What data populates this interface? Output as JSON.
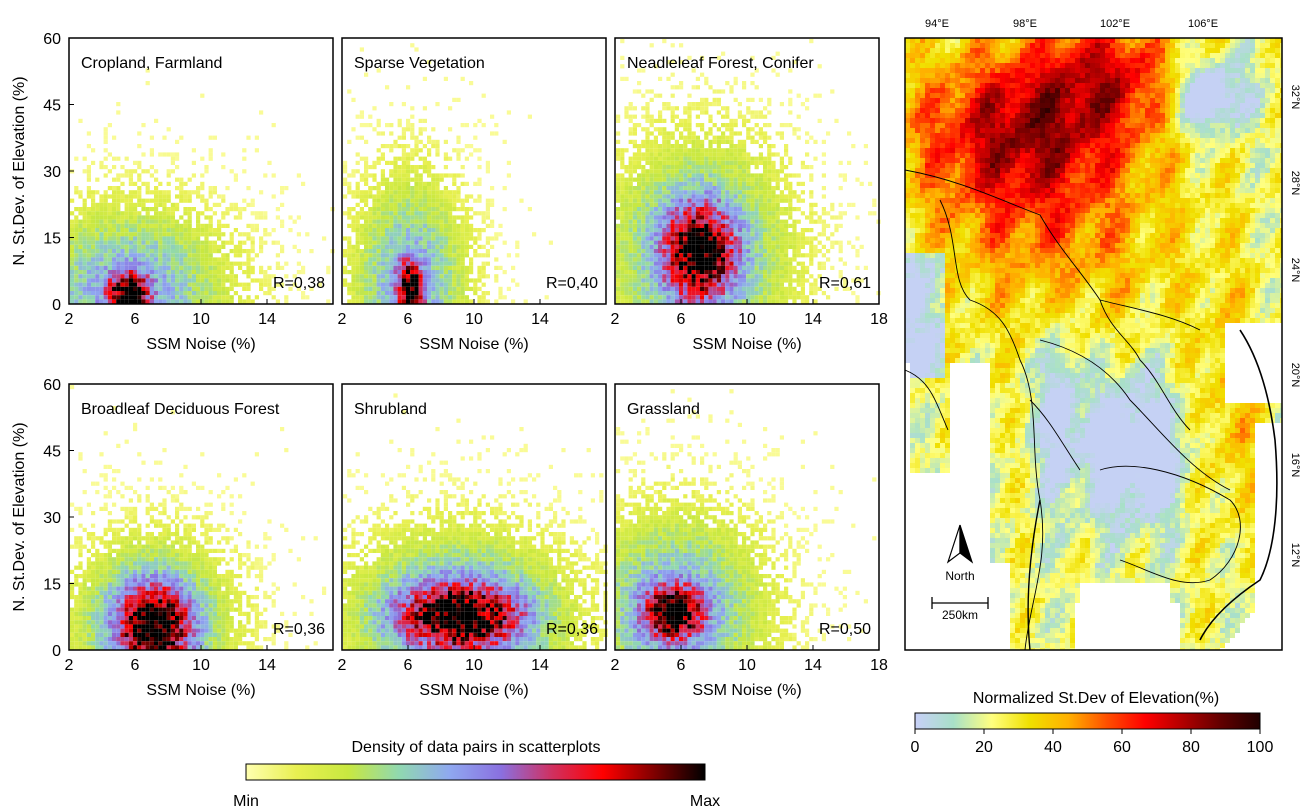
{
  "chart_data": [
    {
      "type": "scatter",
      "panel": "top-left",
      "title": "Cropland, Farmland",
      "annotation": "R=0,38",
      "xlabel": "SSM Noise (%)",
      "ylabel": "N. St.Dev. of Elevation (%)",
      "xlim": [
        2,
        18
      ],
      "ylim": [
        0,
        60
      ],
      "xticks": [
        "2",
        "6",
        "10",
        "14"
      ],
      "yticks": [
        "0",
        "15",
        "30",
        "45",
        "60"
      ],
      "density": {
        "cx": 5.5,
        "cy": 3,
        "sx": 0.8,
        "sy": 3,
        "spread_x": 4.5,
        "spread_y": 14
      }
    },
    {
      "type": "scatter",
      "panel": "top-center",
      "title": "Sparse Vegetation",
      "annotation": "R=0,40",
      "xlabel": "SSM Noise (%)",
      "ylabel": "",
      "xlim": [
        2,
        18
      ],
      "ylim": [
        0,
        60
      ],
      "xticks": [
        "2",
        "6",
        "10",
        "14"
      ],
      "yticks": [],
      "density": {
        "cx": 6,
        "cy": 4,
        "sx": 0.5,
        "sy": 4,
        "spread_x": 2.5,
        "spread_y": 18
      }
    },
    {
      "type": "scatter",
      "panel": "top-right",
      "title": "Neadleleaf Forest, Conifer",
      "annotation": "R=0,61",
      "xlabel": "SSM Noise (%)",
      "ylabel": "",
      "xlim": [
        2,
        18
      ],
      "ylim": [
        0,
        60
      ],
      "xticks": [
        "2",
        "6",
        "10",
        "14",
        "18"
      ],
      "yticks": [],
      "density": {
        "cx": 7,
        "cy": 12,
        "sx": 1.4,
        "sy": 7,
        "spread_x": 4,
        "spread_y": 18
      }
    },
    {
      "type": "scatter",
      "panel": "bottom-left",
      "title": "Broadleaf Deciduous Forest",
      "annotation": "R=0,36",
      "xlabel": "SSM Noise (%)",
      "ylabel": "N. St.Dev. of Elevation (%)",
      "xlim": [
        2,
        18
      ],
      "ylim": [
        0,
        60
      ],
      "xticks": [
        "2",
        "6",
        "10",
        "14"
      ],
      "yticks": [
        "0",
        "15",
        "30",
        "45",
        "60"
      ],
      "density": {
        "cx": 7,
        "cy": 6,
        "sx": 1.5,
        "sy": 6,
        "spread_x": 3.5,
        "spread_y": 14
      }
    },
    {
      "type": "scatter",
      "panel": "bottom-center",
      "title": "Shrubland",
      "annotation": "R=0,36",
      "xlabel": "SSM Noise (%)",
      "ylabel": "",
      "xlim": [
        2,
        18
      ],
      "ylim": [
        0,
        60
      ],
      "xticks": [
        "2",
        "6",
        "10",
        "14"
      ],
      "yticks": [],
      "density": {
        "cx": 9,
        "cy": 8,
        "sx": 2.5,
        "sy": 5,
        "spread_x": 5,
        "spread_y": 14
      }
    },
    {
      "type": "scatter",
      "panel": "bottom-right",
      "title": "Grassland",
      "annotation": "R=0,50",
      "xlabel": "SSM Noise (%)",
      "ylabel": "",
      "xlim": [
        2,
        18
      ],
      "ylim": [
        0,
        60
      ],
      "xticks": [
        "2",
        "6",
        "10",
        "14",
        "18"
      ],
      "yticks": [],
      "density": {
        "cx": 5.5,
        "cy": 9,
        "sx": 1.2,
        "sy": 4,
        "spread_x": 4,
        "spread_y": 16
      }
    }
  ],
  "density_colorbar": {
    "title": "Density of data pairs in scatterplots",
    "min_label": "Min",
    "max_label": "Max",
    "colors": [
      "#ffffb0",
      "#e8f050",
      "#c8e840",
      "#90d8b0",
      "#8fa8f0",
      "#8a70e0",
      "#d03060",
      "#ff0000",
      "#800000",
      "#000000"
    ]
  },
  "map": {
    "type": "heatmap",
    "lon_labels": [
      "94°E",
      "98°E",
      "102°E",
      "106°E"
    ],
    "lat_labels": [
      "32°N",
      "28°N",
      "24°N",
      "20°N",
      "16°N",
      "12°N"
    ],
    "north_label": "North",
    "scale_label": "250km"
  },
  "elevation_colorbar": {
    "title": "Normalized St.Dev of Elevation(%)",
    "ticks": [
      "0",
      "20",
      "40",
      "60",
      "80",
      "100"
    ],
    "colors": [
      "#c8d0f8",
      "#a8e0c8",
      "#ffff80",
      "#f0e000",
      "#ffb000",
      "#ff5000",
      "#ff0000",
      "#b00000",
      "#600000",
      "#200000"
    ]
  }
}
